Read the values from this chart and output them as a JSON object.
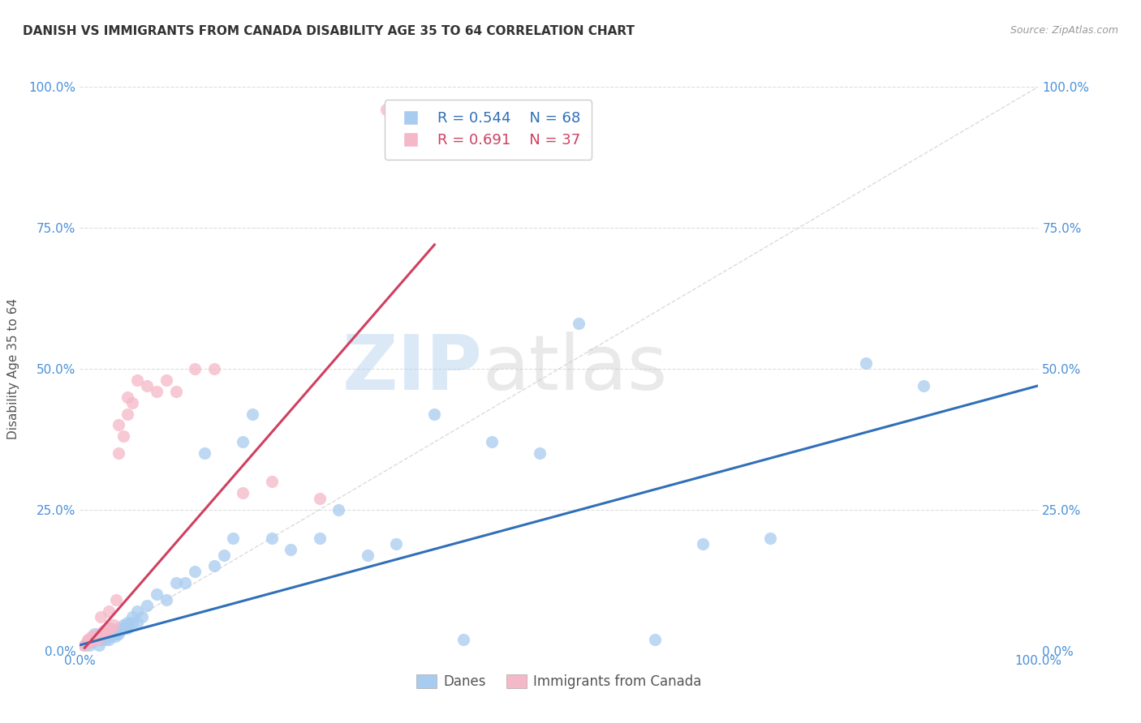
{
  "title": "DANISH VS IMMIGRANTS FROM CANADA DISABILITY AGE 35 TO 64 CORRELATION CHART",
  "source": "Source: ZipAtlas.com",
  "ylabel": "Disability Age 35 to 64",
  "xlim": [
    0.0,
    1.0
  ],
  "ylim": [
    0.0,
    1.0
  ],
  "ytick_positions": [
    0.0,
    0.25,
    0.5,
    0.75,
    1.0
  ],
  "ytick_labels": [
    "0.0%",
    "25.0%",
    "50.0%",
    "75.0%",
    "100.0%"
  ],
  "danes_R": "0.544",
  "danes_N": "68",
  "immigrants_R": "0.691",
  "immigrants_N": "37",
  "danes_color": "#a8ccf0",
  "immigrants_color": "#f5b8c8",
  "danes_line_color": "#3070b8",
  "immigrants_line_color": "#d04060",
  "diagonal_color": "#cccccc",
  "background_color": "#ffffff",
  "grid_color": "#dddddd",
  "watermark_zip": "ZIP",
  "watermark_atlas": "atlas",
  "danes_scatter_x": [
    0.005,
    0.008,
    0.01,
    0.01,
    0.012,
    0.015,
    0.015,
    0.017,
    0.018,
    0.02,
    0.02,
    0.02,
    0.022,
    0.025,
    0.025,
    0.027,
    0.027,
    0.028,
    0.03,
    0.03,
    0.03,
    0.032,
    0.035,
    0.035,
    0.037,
    0.038,
    0.04,
    0.04,
    0.04,
    0.042,
    0.045,
    0.045,
    0.05,
    0.05,
    0.05,
    0.055,
    0.055,
    0.06,
    0.06,
    0.065,
    0.07,
    0.08,
    0.09,
    0.1,
    0.11,
    0.12,
    0.13,
    0.14,
    0.15,
    0.16,
    0.17,
    0.18,
    0.2,
    0.22,
    0.25,
    0.27,
    0.3,
    0.33,
    0.37,
    0.4,
    0.43,
    0.48,
    0.52,
    0.6,
    0.65,
    0.72,
    0.82,
    0.88
  ],
  "danes_scatter_y": [
    0.01,
    0.015,
    0.01,
    0.02,
    0.015,
    0.02,
    0.03,
    0.025,
    0.02,
    0.01,
    0.025,
    0.03,
    0.02,
    0.03,
    0.025,
    0.02,
    0.03,
    0.025,
    0.02,
    0.03,
    0.035,
    0.025,
    0.03,
    0.035,
    0.025,
    0.03,
    0.03,
    0.035,
    0.04,
    0.035,
    0.04,
    0.045,
    0.04,
    0.045,
    0.05,
    0.05,
    0.06,
    0.05,
    0.07,
    0.06,
    0.08,
    0.1,
    0.09,
    0.12,
    0.12,
    0.14,
    0.35,
    0.15,
    0.17,
    0.2,
    0.37,
    0.42,
    0.2,
    0.18,
    0.2,
    0.25,
    0.17,
    0.19,
    0.42,
    0.02,
    0.37,
    0.35,
    0.58,
    0.02,
    0.19,
    0.2,
    0.51,
    0.47
  ],
  "immigrants_scatter_x": [
    0.005,
    0.007,
    0.008,
    0.01,
    0.01,
    0.012,
    0.015,
    0.015,
    0.018,
    0.02,
    0.02,
    0.022,
    0.025,
    0.025,
    0.028,
    0.03,
    0.03,
    0.032,
    0.035,
    0.038,
    0.04,
    0.04,
    0.045,
    0.05,
    0.05,
    0.055,
    0.06,
    0.07,
    0.08,
    0.09,
    0.1,
    0.12,
    0.14,
    0.17,
    0.2,
    0.25,
    0.32
  ],
  "immigrants_scatter_y": [
    0.01,
    0.015,
    0.02,
    0.015,
    0.02,
    0.025,
    0.02,
    0.025,
    0.02,
    0.025,
    0.03,
    0.06,
    0.03,
    0.035,
    0.035,
    0.04,
    0.07,
    0.04,
    0.045,
    0.09,
    0.35,
    0.4,
    0.38,
    0.42,
    0.45,
    0.44,
    0.48,
    0.47,
    0.46,
    0.48,
    0.46,
    0.5,
    0.5,
    0.28,
    0.3,
    0.27,
    0.96
  ],
  "danes_line_x": [
    0.0,
    1.0
  ],
  "danes_line_y": [
    0.01,
    0.47
  ],
  "immigrants_line_x": [
    0.005,
    0.37
  ],
  "immigrants_line_y": [
    0.005,
    0.72
  ]
}
